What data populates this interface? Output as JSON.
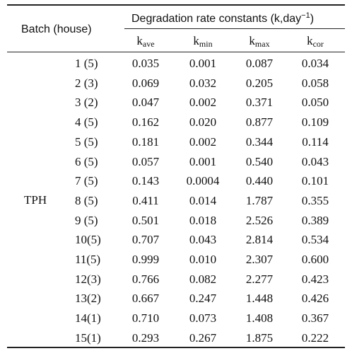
{
  "table": {
    "col_batch_header": "Batch (house)",
    "group_header_text": "Degradation rate constants (k,day",
    "group_header_sup": "−1",
    "group_header_close": ")",
    "columns": [
      {
        "base": "k",
        "sub": "ave"
      },
      {
        "base": "k",
        "sub": "min"
      },
      {
        "base": "k",
        "sub": "max"
      },
      {
        "base": "k",
        "sub": "cor"
      }
    ],
    "group_label": "TPH",
    "rows": [
      {
        "batch": "1 (5)",
        "values": [
          "0.035",
          "0.001",
          "0.087",
          "0.034"
        ]
      },
      {
        "batch": "2 (3)",
        "values": [
          "0.069",
          "0.032",
          "0.205",
          "0.058"
        ]
      },
      {
        "batch": "3 (2)",
        "values": [
          "0.047",
          "0.002",
          "0.371",
          "0.050"
        ]
      },
      {
        "batch": "4 (5)",
        "values": [
          "0.162",
          "0.020",
          "0.877",
          "0.109"
        ]
      },
      {
        "batch": "5 (5)",
        "values": [
          "0.181",
          "0.002",
          "0.344",
          "0.114"
        ]
      },
      {
        "batch": "6 (5)",
        "values": [
          "0.057",
          "0.001",
          "0.540",
          "0.043"
        ]
      },
      {
        "batch": "7 (5)",
        "values": [
          "0.143",
          "0.0004",
          "0.440",
          "0.101"
        ]
      },
      {
        "batch": "8 (5)",
        "values": [
          "0.411",
          "0.014",
          "1.787",
          "0.355"
        ]
      },
      {
        "batch": "9 (5)",
        "values": [
          "0.501",
          "0.018",
          "2.526",
          "0.389"
        ]
      },
      {
        "batch": "10(5)",
        "values": [
          "0.707",
          "0.043",
          "2.814",
          "0.534"
        ]
      },
      {
        "batch": "11(5)",
        "values": [
          "0.999",
          "0.010",
          "2.307",
          "0.600"
        ]
      },
      {
        "batch": "12(3)",
        "values": [
          "0.766",
          "0.082",
          "2.277",
          "0.423"
        ]
      },
      {
        "batch": "13(2)",
        "values": [
          "0.667",
          "0.247",
          "1.448",
          "0.426"
        ]
      },
      {
        "batch": "14(1)",
        "values": [
          "0.710",
          "0.073",
          "1.408",
          "0.367"
        ]
      },
      {
        "batch": "15(1)",
        "values": [
          "0.293",
          "0.267",
          "1.875",
          "0.222"
        ]
      }
    ]
  }
}
